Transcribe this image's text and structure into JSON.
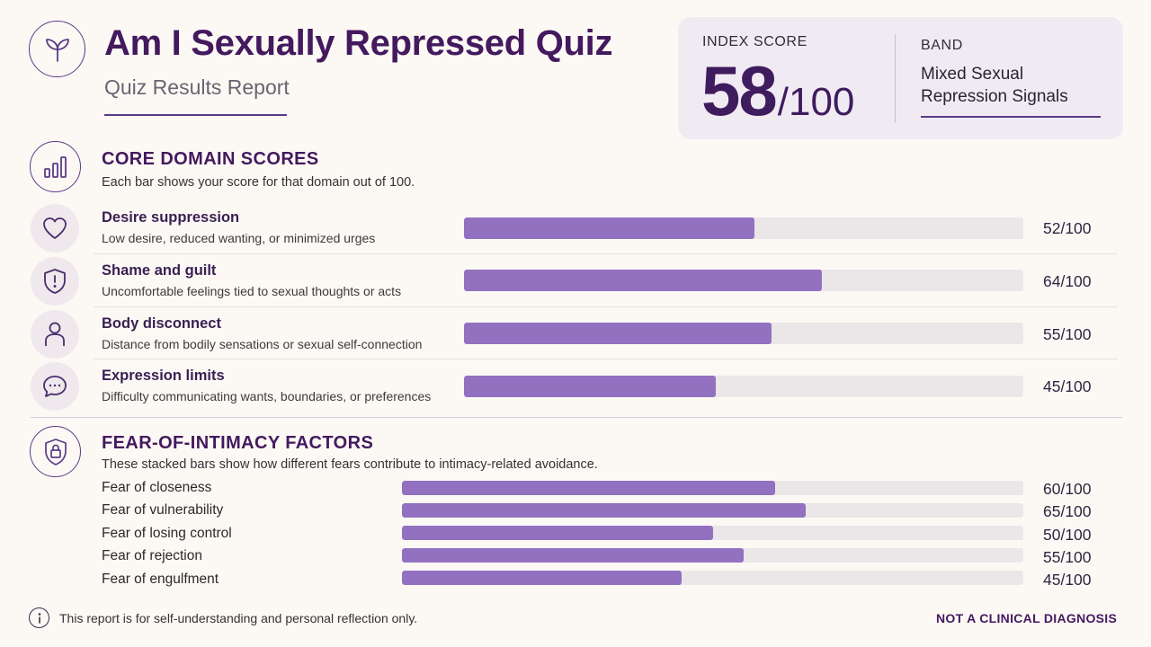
{
  "header": {
    "title": "Am I Sexually Repressed Quiz",
    "subtitle": "Quiz Results Report",
    "logo_icon": "sprout-icon"
  },
  "index_score": {
    "label": "INDEX SCORE",
    "value": "58",
    "max": "/100",
    "band_label": "BAND",
    "band_value": "Mixed Sexual Repression Signals"
  },
  "core": {
    "title": "CORE DOMAIN SCORES",
    "description": "Each bar shows your score for that domain out of 100.",
    "icon": "bar-chart-icon",
    "domains": [
      {
        "name": "Desire suppression",
        "description": "Low desire, reduced wanting, or minimized urges",
        "score": 52,
        "score_text": "52/100",
        "icon": "heart-icon"
      },
      {
        "name": "Shame and guilt",
        "description": "Uncomfortable feelings tied to sexual thoughts or acts",
        "score": 64,
        "score_text": "64/100",
        "icon": "shield-alert-icon"
      },
      {
        "name": "Body disconnect",
        "description": "Distance from bodily sensations or sexual self-connection",
        "score": 55,
        "score_text": "55/100",
        "icon": "person-icon"
      },
      {
        "name": "Expression limits",
        "description": "Difficulty communicating wants, boundaries, or preferences",
        "score": 45,
        "score_text": "45/100",
        "icon": "chat-bubble-icon"
      }
    ]
  },
  "fear": {
    "title": "FEAR-OF-INTIMACY FACTORS",
    "description": "These stacked bars show how different fears contribute to intimacy-related avoidance.",
    "icon": "shield-lock-icon",
    "factors": [
      {
        "name": "Fear of closeness",
        "score": 60,
        "score_text": "60/100"
      },
      {
        "name": "Fear of vulnerability",
        "score": 65,
        "score_text": "65/100"
      },
      {
        "name": "Fear of losing control",
        "score": 50,
        "score_text": "50/100"
      },
      {
        "name": "Fear of rejection",
        "score": 55,
        "score_text": "55/100"
      },
      {
        "name": "Fear of engulfment",
        "score": 45,
        "score_text": "45/100"
      }
    ]
  },
  "footer": {
    "icon": "info-icon",
    "note": "This report is for self-understanding and personal reflection only.",
    "disclaimer": "NOT A CLINICAL DIAGNOSIS"
  },
  "colors": {
    "accent": "#44195e",
    "bar_fill": "#9271c0",
    "bar_track": "#ebe6e8",
    "card_bg": "#f0ebf3"
  }
}
